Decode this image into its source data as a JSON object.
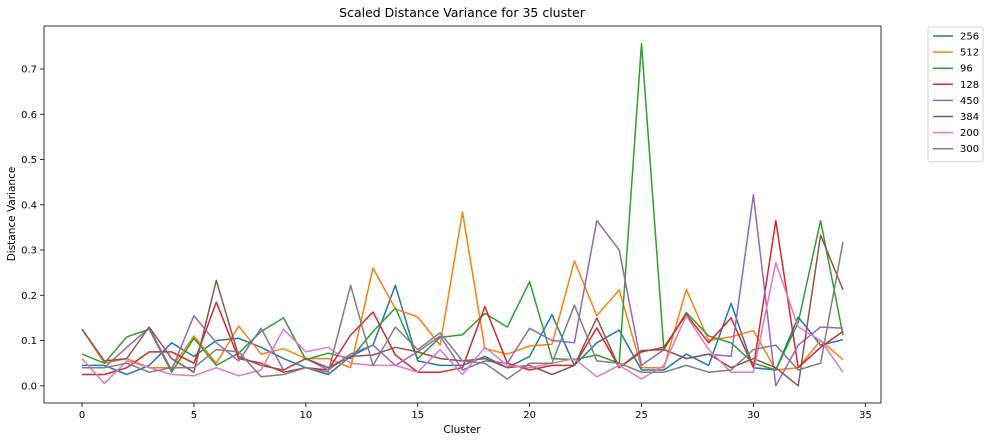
{
  "chart_data": {
    "type": "line",
    "title": "Scaled Distance Variance for 35 cluster",
    "xlabel": "Cluster",
    "ylabel": "Distance Variance",
    "xlim": [
      -1.7,
      35.7
    ],
    "ylim": [
      -0.038,
      0.795
    ],
    "xticks": [
      0,
      5,
      10,
      15,
      20,
      25,
      30,
      35
    ],
    "yticks": [
      0.0,
      0.1,
      0.2,
      0.3,
      0.4,
      0.5,
      0.6,
      0.7
    ],
    "ytick_labels": [
      "0.0",
      "0.1",
      "0.2",
      "0.3",
      "0.4",
      "0.5",
      "0.6",
      "0.7"
    ],
    "legend_position": "outside-top-right",
    "grid": false,
    "x": [
      0,
      1,
      2,
      3,
      4,
      5,
      6,
      7,
      8,
      9,
      10,
      11,
      12,
      13,
      14,
      15,
      16,
      17,
      18,
      19,
      20,
      21,
      22,
      23,
      24,
      25,
      26,
      27,
      28,
      29,
      30,
      31,
      32,
      33,
      34
    ],
    "series": [
      {
        "name": "256",
        "color": "#1f77b4",
        "values": [
          0.045,
          0.045,
          0.025,
          0.045,
          0.095,
          0.065,
          0.1,
          0.105,
          0.085,
          0.06,
          0.04,
          0.025,
          0.065,
          0.09,
          0.222,
          0.055,
          0.045,
          0.045,
          0.065,
          0.04,
          0.065,
          0.157,
          0.045,
          0.095,
          0.123,
          0.035,
          0.035,
          0.07,
          0.045,
          0.182,
          0.04,
          0.035,
          0.152,
          0.09,
          0.102
        ]
      },
      {
        "name": "512",
        "color": "#ff7f0e",
        "values": [
          0.125,
          0.05,
          0.06,
          0.04,
          0.04,
          0.11,
          0.05,
          0.132,
          0.07,
          0.082,
          0.06,
          0.06,
          0.04,
          0.26,
          0.17,
          0.152,
          0.09,
          0.384,
          0.082,
          0.07,
          0.088,
          0.092,
          0.276,
          0.155,
          0.212,
          0.04,
          0.04,
          0.213,
          0.1,
          0.108,
          0.122,
          0.035,
          0.04,
          0.1,
          0.058
        ]
      },
      {
        "name": "96",
        "color": "#2ca02c",
        "values": [
          0.07,
          0.05,
          0.108,
          0.125,
          0.03,
          0.105,
          0.045,
          0.072,
          0.12,
          0.15,
          0.058,
          0.072,
          0.06,
          0.12,
          0.172,
          0.06,
          0.107,
          0.113,
          0.16,
          0.13,
          0.23,
          0.06,
          0.058,
          0.068,
          0.05,
          0.756,
          0.08,
          0.162,
          0.11,
          0.095,
          0.05,
          0.035,
          0.14,
          0.365,
          0.112
        ]
      },
      {
        "name": "128",
        "color": "#d62728",
        "values": [
          0.025,
          0.025,
          0.04,
          0.075,
          0.075,
          0.05,
          0.185,
          0.06,
          0.05,
          0.03,
          0.04,
          0.035,
          0.112,
          0.163,
          0.068,
          0.03,
          0.03,
          0.04,
          0.175,
          0.05,
          0.035,
          0.045,
          0.045,
          0.128,
          0.04,
          0.075,
          0.085,
          0.158,
          0.095,
          0.15,
          0.04,
          0.365,
          0.04,
          0.085,
          0.12
        ]
      },
      {
        "name": "450",
        "color": "#9467bd",
        "values": [
          0.04,
          0.04,
          0.085,
          0.128,
          0.035,
          0.155,
          0.095,
          0.055,
          0.127,
          0.035,
          0.06,
          0.035,
          0.07,
          0.09,
          0.045,
          0.075,
          0.11,
          0.035,
          0.055,
          0.05,
          0.127,
          0.1,
          0.095,
          0.365,
          0.3,
          0.045,
          0.08,
          0.06,
          0.07,
          0.065,
          0.422,
          0.0,
          0.09,
          0.13,
          0.127
        ]
      },
      {
        "name": "384",
        "color": "#8c564b",
        "values": [
          0.125,
          0.055,
          0.06,
          0.13,
          0.06,
          0.03,
          0.233,
          0.065,
          0.045,
          0.035,
          0.06,
          0.04,
          0.065,
          0.068,
          0.085,
          0.075,
          0.06,
          0.055,
          0.06,
          0.04,
          0.045,
          0.025,
          0.045,
          0.15,
          0.04,
          0.078,
          0.08,
          0.06,
          0.07,
          0.04,
          0.06,
          0.04,
          0.0,
          0.333,
          0.212
        ]
      },
      {
        "name": "200",
        "color": "#e377c2",
        "values": [
          0.06,
          0.005,
          0.055,
          0.04,
          0.025,
          0.022,
          0.04,
          0.022,
          0.035,
          0.125,
          0.075,
          0.085,
          0.05,
          0.045,
          0.045,
          0.03,
          0.08,
          0.025,
          0.085,
          0.045,
          0.04,
          0.05,
          0.06,
          0.02,
          0.045,
          0.015,
          0.045,
          0.155,
          0.08,
          0.03,
          0.03,
          0.272,
          0.13,
          0.1,
          0.03
        ]
      },
      {
        "name": "300",
        "color": "#7f7f7f",
        "values": [
          0.04,
          0.04,
          0.05,
          0.03,
          0.04,
          0.04,
          0.08,
          0.075,
          0.02,
          0.025,
          0.04,
          0.03,
          0.222,
          0.045,
          0.13,
          0.08,
          0.117,
          0.055,
          0.05,
          0.015,
          0.05,
          0.05,
          0.178,
          0.055,
          0.05,
          0.03,
          0.03,
          0.045,
          0.03,
          0.035,
          0.08,
          0.09,
          0.035,
          0.05,
          0.318
        ]
      }
    ]
  }
}
